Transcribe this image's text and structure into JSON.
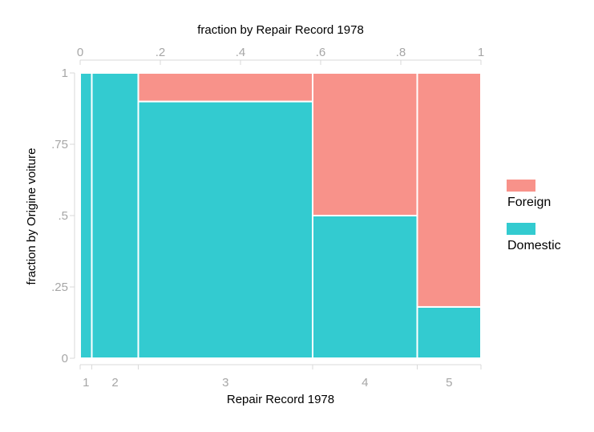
{
  "chart_data": {
    "type": "mosaic",
    "title_top": "fraction by Repair Record 1978",
    "xlabel": "Repair Record 1978",
    "ylabel": "fraction by Origine voiture",
    "top_ticks": [
      "0",
      ".2",
      ".4",
      ".6",
      ".8",
      "1"
    ],
    "top_tick_values": [
      0,
      0.2,
      0.4,
      0.6,
      0.8,
      1
    ],
    "y_ticks": [
      "0",
      ".25",
      ".5",
      ".75",
      "1"
    ],
    "y_tick_values": [
      0,
      0.25,
      0.5,
      0.75,
      1
    ],
    "xlim": [
      0,
      1
    ],
    "ylim": [
      0,
      1
    ],
    "categories": [
      "1",
      "2",
      "3",
      "4",
      "5"
    ],
    "category_widths": [
      0.029,
      0.116,
      0.435,
      0.261,
      0.159
    ],
    "series": [
      {
        "name": "Domestic",
        "color": "#33cbd0",
        "values": [
          1.0,
          1.0,
          0.9,
          0.5,
          0.18
        ]
      },
      {
        "name": "Foreign",
        "color": "#f8928a",
        "values": [
          0.0,
          0.0,
          0.1,
          0.5,
          0.82
        ]
      }
    ],
    "legend": [
      {
        "label": "Foreign",
        "color": "#f8928a"
      },
      {
        "label": "Domestic",
        "color": "#33cbd0"
      }
    ],
    "legend_position": "right",
    "grid": false
  }
}
